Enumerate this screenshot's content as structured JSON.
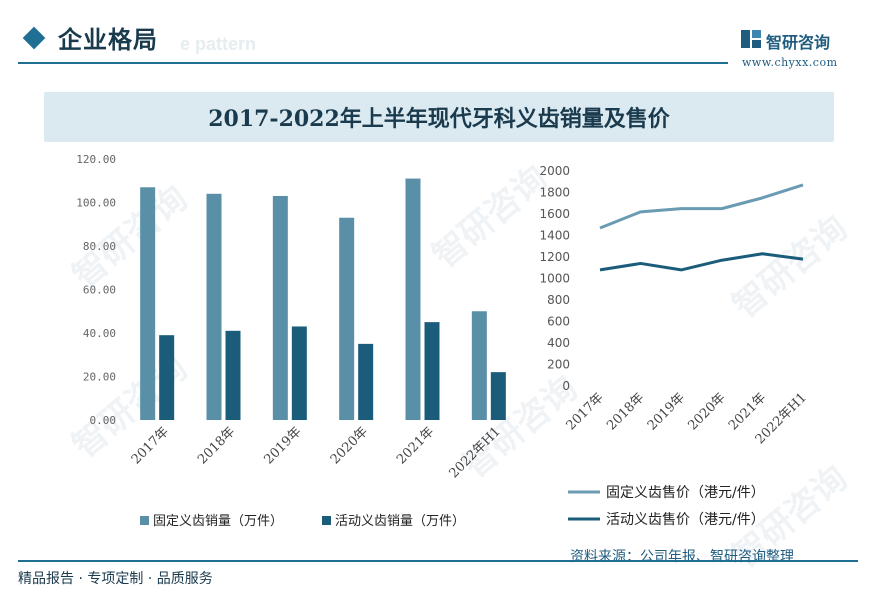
{
  "header": {
    "section_title": "企业格局",
    "ghost_text": "e pattern",
    "brand_name": "智研咨询",
    "brand_url": "www.chyxx.com"
  },
  "chart_title": "2017-2022年上半年现代牙科义齿销量及售价",
  "watermark_text": "智研咨询",
  "colors": {
    "accent": "#1f6e93",
    "bar_fixed": "#5a8fa8",
    "bar_active": "#1b5c7a",
    "line_fixed": "#6a9bb3",
    "line_active": "#1b5c7a",
    "banner_bg": "#dbe9f1"
  },
  "chart_data": [
    {
      "type": "bar",
      "title": "",
      "categories": [
        "2017年",
        "2018年",
        "2019年",
        "2020年",
        "2021年",
        "2022年H1"
      ],
      "series": [
        {
          "name": "固定义齿销量（万件）",
          "values": [
            107,
            104,
            103,
            93,
            111,
            50
          ]
        },
        {
          "name": "活动义齿销量（万件）",
          "values": [
            39,
            41,
            43,
            35,
            45,
            22
          ]
        }
      ],
      "ylim": [
        0,
        120
      ],
      "yticks": [
        "0.00",
        "20.00",
        "40.00",
        "60.00",
        "80.00",
        "100.00",
        "120.00"
      ],
      "ytick_values": [
        0,
        20,
        40,
        60,
        80,
        100,
        120
      ],
      "legend_position": "bottom"
    },
    {
      "type": "line",
      "title": "",
      "categories": [
        "2017年",
        "2018年",
        "2019年",
        "2020年",
        "2021年",
        "2022年H1"
      ],
      "series": [
        {
          "name": "固定义齿售价（港元/件）",
          "values": [
            1470,
            1620,
            1650,
            1650,
            1750,
            1870
          ]
        },
        {
          "name": "活动义齿售价（港元/件）",
          "values": [
            1080,
            1140,
            1080,
            1170,
            1230,
            1180
          ]
        }
      ],
      "ylim": [
        0,
        2000
      ],
      "yticks": [
        "0",
        "200",
        "400",
        "600",
        "800",
        "1000",
        "1200",
        "1400",
        "1600",
        "1800",
        "2000"
      ],
      "ytick_values": [
        0,
        200,
        400,
        600,
        800,
        1000,
        1200,
        1400,
        1600,
        1800,
        2000
      ],
      "legend_position": "bottom"
    }
  ],
  "footer": {
    "source": "资料来源：公司年报、智研咨询整理",
    "slogan": "精品报告 · 专项定制 · 品质服务"
  }
}
